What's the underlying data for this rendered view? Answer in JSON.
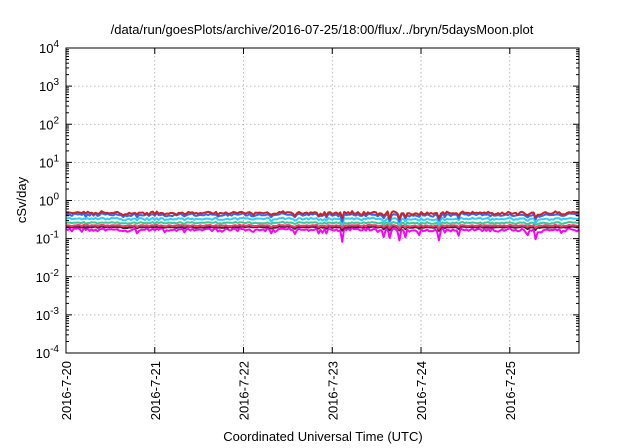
{
  "chart_data": {
    "type": "line",
    "title": "/data/run/goesPlots/archive/2016-07-25/18:00/flux/../bryn/5daysMoon.plot",
    "xlabel": "Coordinated Universal Time (UTC)",
    "ylabel": "cSv/day",
    "yscale": "log",
    "ylim_exponents": [
      -4,
      4
    ],
    "y_tick_base": "10",
    "y_tick_exponents": [
      "-4",
      "-3",
      "-2",
      "-1",
      "0",
      "1",
      "2",
      "3",
      "4"
    ],
    "x_range_days": [
      0,
      5.78
    ],
    "x_tick_days": [
      0,
      1,
      2,
      3,
      4,
      5
    ],
    "x_tick_labels": [
      "2016-7-20",
      "2016-7-21",
      "2016-7-22",
      "2016-7-23",
      "2016-7-24",
      "2016-7-25"
    ],
    "grid": true,
    "series": [
      {
        "color": "#ff00ff",
        "base": 0.17,
        "amp": 0.15,
        "dipAmp": 0.45
      },
      {
        "color": "#333333",
        "base": 0.2,
        "amp": 0.06,
        "dipAmp": 0.18
      },
      {
        "color": "#ff3366",
        "base": 0.22,
        "amp": 0.06,
        "dipAmp": 0.15
      },
      {
        "color": "#33cc99",
        "base": 0.26,
        "amp": 0.07,
        "dipAmp": 0.15
      },
      {
        "color": "#33ccff",
        "base": 0.33,
        "amp": 0.1,
        "dipAmp": 0.22
      },
      {
        "color": "#3366ff",
        "base": 0.42,
        "amp": 0.12,
        "dipAmp": 0.28
      },
      {
        "color": "#cc2222",
        "base": 0.47,
        "amp": 0.12,
        "dipAmp": 0.28
      }
    ]
  }
}
